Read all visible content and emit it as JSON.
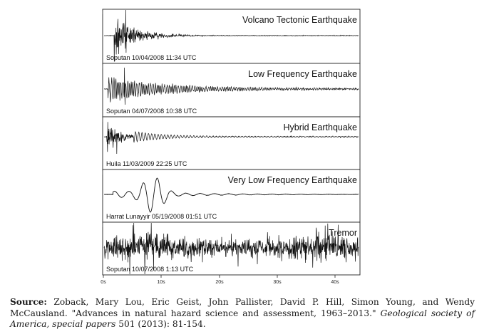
{
  "panels": [
    {
      "title": "Volcano Tectonic Earthquake",
      "label": "Soputan 10/04/2008 11:34 UTC"
    },
    {
      "title": "Low Frequency Earthquake",
      "label": "Soputan 04/07/2008 10:38 UTC"
    },
    {
      "title": "Hybrid Earthquake",
      "label": "Huila 11/03/2009 22:25 UTC"
    },
    {
      "title": "Very Low Frequency Earthquake",
      "label": "Harrat Lunayyir 05/19/2008 01:51 UTC"
    },
    {
      "title": "Tremor",
      "label": "Soputan 10/07/2008 1:13 UTC"
    }
  ],
  "x_ticks": [
    "0s",
    "10s",
    "20s",
    "30s",
    "40s"
  ],
  "caption": {
    "source_label": "Source:",
    "text_1": " Zoback, Mary Lou, Eric Geist, John Pallister, David P. Hill, Simon Young, and Wendy McCausland. \"Advances in natural hazard science and assessment, 1963–2013.\" ",
    "journal": "Geological society of America, special papers",
    "text_2": " 501 (2013): 81-154."
  }
}
